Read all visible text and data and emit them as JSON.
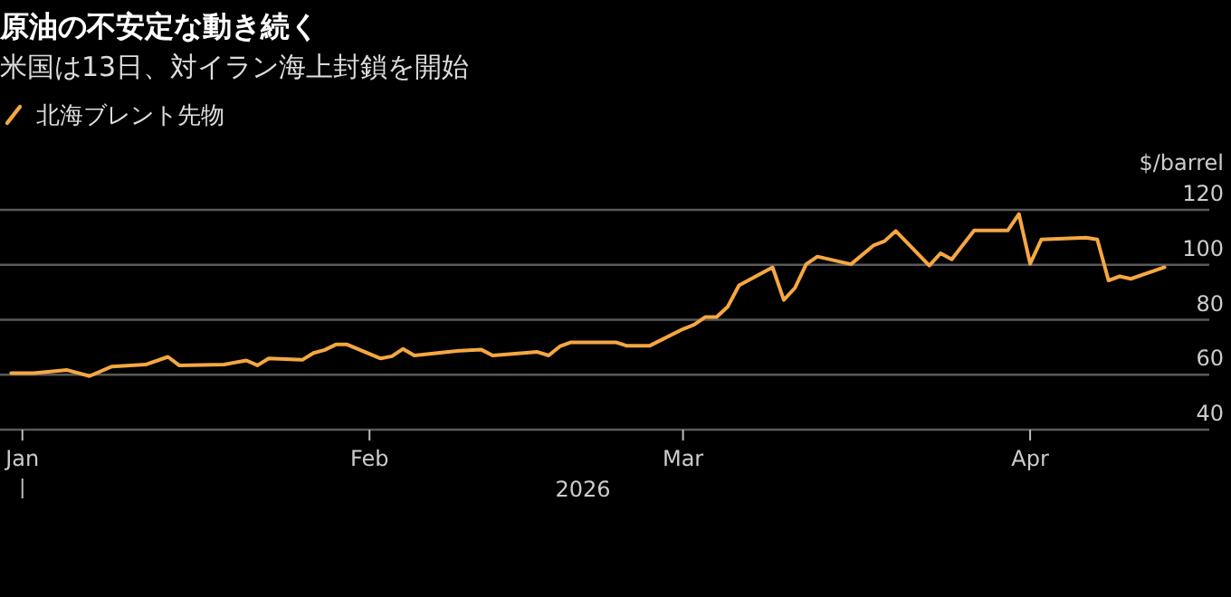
{
  "chart_data": {
    "type": "line",
    "title": "原油の不安定な動き続く",
    "subtitle": "米国は13日、対イラン海上封鎖を開始",
    "xlabel": "2026",
    "ylabel": "$/barrel",
    "x": [
      "2025-12-31",
      "2026-01-02",
      "2026-01-05",
      "2026-01-07",
      "2026-01-09",
      "2026-01-12",
      "2026-01-14",
      "2026-01-15",
      "2026-01-19",
      "2026-01-21",
      "2026-01-22",
      "2026-01-23",
      "2026-01-26",
      "2026-01-27",
      "2026-01-28",
      "2026-01-29",
      "2026-01-30",
      "2026-02-02",
      "2026-02-03",
      "2026-02-04",
      "2026-02-05",
      "2026-02-09",
      "2026-02-11",
      "2026-02-12",
      "2026-02-16",
      "2026-02-17",
      "2026-02-18",
      "2026-02-19",
      "2026-02-23",
      "2026-02-24",
      "2026-02-26",
      "2026-03-01",
      "2026-03-02",
      "2026-03-03",
      "2026-03-04",
      "2026-03-05",
      "2026-03-06",
      "2026-03-09",
      "2026-03-10",
      "2026-03-11",
      "2026-03-12",
      "2026-03-13",
      "2026-03-16",
      "2026-03-18",
      "2026-03-19",
      "2026-03-20",
      "2026-03-23",
      "2026-03-24",
      "2026-03-25",
      "2026-03-27",
      "2026-03-30",
      "2026-03-31",
      "2026-04-01",
      "2026-04-02",
      "2026-04-06",
      "2026-04-07",
      "2026-04-08",
      "2026-04-09",
      "2026-04-10",
      "2026-04-13"
    ],
    "series": [
      {
        "name": "北海ブレント先物",
        "color": "#f5a742",
        "values": [
          60.6,
          60.6,
          61.7,
          59.5,
          63.0,
          63.7,
          66.5,
          63.4,
          63.7,
          65.2,
          63.4,
          65.9,
          65.4,
          67.9,
          69.0,
          71.0,
          71.0,
          65.9,
          66.7,
          69.4,
          67.0,
          68.7,
          69.1,
          67.0,
          68.3,
          67.0,
          70.3,
          71.8,
          71.8,
          70.5,
          70.5,
          76.6,
          78.2,
          81.0,
          81.0,
          84.8,
          92.5,
          99.1,
          87.2,
          91.6,
          100.2,
          103.0,
          100.2,
          107.0,
          108.6,
          112.3,
          99.7,
          104.2,
          102.0,
          112.5,
          112.5,
          118.5,
          100.4,
          109.2,
          109.9,
          109.2,
          94.3,
          95.8,
          94.9,
          99.1
        ]
      }
    ],
    "xlim": [
      "2025-12-30",
      "2026-04-17"
    ],
    "xticks": [
      {
        "value": "2026-01-01",
        "label": "Jan"
      },
      {
        "value": "2026-02-01",
        "label": "Feb"
      },
      {
        "value": "2026-03-01",
        "label": "Mar"
      },
      {
        "value": "2026-04-01",
        "label": "Apr"
      }
    ],
    "ylim": [
      40,
      120
    ],
    "yticks": [
      40,
      60,
      80,
      100,
      120
    ],
    "grid": "y",
    "legend": "top left",
    "line_style": "solid",
    "marker": "none"
  }
}
